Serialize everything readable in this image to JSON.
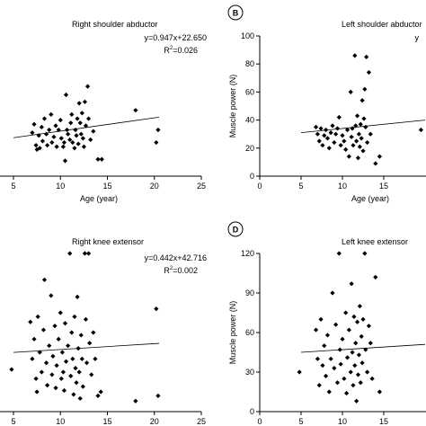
{
  "chart_data": [
    {
      "type": "scatter",
      "panel_letter": "",
      "title": "Right shoulder abductor",
      "equation": "y=0.947x+22.650",
      "r2_label": "R",
      "r2_sup": "2",
      "r2_value": "=0.026",
      "xlabel": "Age (year)",
      "ylabel": "",
      "xlim": [
        5,
        25
      ],
      "ylim": [
        0,
        100
      ],
      "xticks": [
        "5",
        "10",
        "15",
        "20",
        "25"
      ],
      "yticks": [],
      "trend": {
        "slope": 0.947,
        "intercept": 22.65,
        "x": [
          5,
          20.5
        ]
      },
      "points": [
        [
          7.0,
          31
        ],
        [
          7.2,
          37
        ],
        [
          7.4,
          22
        ],
        [
          7.5,
          19
        ],
        [
          7.7,
          29
        ],
        [
          7.8,
          20
        ],
        [
          8.0,
          35
        ],
        [
          8.1,
          25
        ],
        [
          8.3,
          41
        ],
        [
          8.5,
          30
        ],
        [
          8.6,
          22
        ],
        [
          8.8,
          33
        ],
        [
          9.0,
          44
        ],
        [
          9.1,
          24
        ],
        [
          9.3,
          28
        ],
        [
          9.5,
          36
        ],
        [
          9.6,
          21
        ],
        [
          9.8,
          33
        ],
        [
          10.0,
          40
        ],
        [
          10.1,
          27
        ],
        [
          10.3,
          21
        ],
        [
          10.4,
          24
        ],
        [
          10.5,
          11
        ],
        [
          10.6,
          58
        ],
        [
          10.7,
          33
        ],
        [
          10.8,
          30
        ],
        [
          11.0,
          26
        ],
        [
          11.1,
          38
        ],
        [
          11.2,
          44
        ],
        [
          11.3,
          24
        ],
        [
          11.5,
          20
        ],
        [
          11.6,
          33
        ],
        [
          11.7,
          29
        ],
        [
          11.8,
          41
        ],
        [
          11.9,
          23
        ],
        [
          12.0,
          52
        ],
        [
          12.1,
          38
        ],
        [
          12.2,
          30
        ],
        [
          12.3,
          45
        ],
        [
          12.4,
          27
        ],
        [
          12.5,
          21
        ],
        [
          12.6,
          53
        ],
        [
          12.7,
          36
        ],
        [
          12.9,
          64
        ],
        [
          13.0,
          41
        ],
        [
          13.2,
          26
        ],
        [
          13.5,
          32
        ],
        [
          14.0,
          12
        ],
        [
          14.4,
          12
        ],
        [
          18.0,
          47
        ],
        [
          20.2,
          24
        ],
        [
          20.4,
          33
        ]
      ]
    },
    {
      "type": "scatter",
      "panel_letter": "B",
      "title": "Left shoulder abductor",
      "equation": "y",
      "r2_label": "",
      "r2_sup": "",
      "r2_value": "",
      "xlabel": "Age (year)",
      "ylabel": "Muscle power (N)",
      "xlim": [
        0,
        20
      ],
      "ylim": [
        0,
        100
      ],
      "xticks": [
        "0",
        "5",
        "10",
        "15"
      ],
      "yticks": [
        "0",
        "20",
        "40",
        "60",
        "80",
        "100"
      ],
      "trend": {
        "slope": 0.6,
        "intercept": 28.0,
        "x": [
          5,
          20
        ]
      },
      "points": [
        [
          6.8,
          35
        ],
        [
          7.0,
          30
        ],
        [
          7.2,
          25
        ],
        [
          7.4,
          34
        ],
        [
          7.6,
          22
        ],
        [
          7.8,
          29
        ],
        [
          8.0,
          33
        ],
        [
          8.2,
          27
        ],
        [
          8.4,
          20
        ],
        [
          8.6,
          31
        ],
        [
          8.8,
          36
        ],
        [
          9.0,
          24
        ],
        [
          9.2,
          30
        ],
        [
          9.4,
          34
        ],
        [
          9.6,
          42
        ],
        [
          9.8,
          22
        ],
        [
          10.0,
          29
        ],
        [
          10.2,
          25
        ],
        [
          10.4,
          19
        ],
        [
          10.6,
          33
        ],
        [
          10.8,
          14
        ],
        [
          11.0,
          60
        ],
        [
          11.1,
          28
        ],
        [
          11.2,
          34
        ],
        [
          11.3,
          22
        ],
        [
          11.5,
          86
        ],
        [
          11.6,
          36
        ],
        [
          11.7,
          25
        ],
        [
          11.8,
          43
        ],
        [
          11.9,
          13
        ],
        [
          12.0,
          30
        ],
        [
          12.1,
          21
        ],
        [
          12.2,
          37
        ],
        [
          12.3,
          27
        ],
        [
          12.4,
          54
        ],
        [
          12.5,
          18
        ],
        [
          12.6,
          41
        ],
        [
          12.7,
          62
        ],
        [
          12.8,
          35
        ],
        [
          12.9,
          85
        ],
        [
          13.0,
          24
        ],
        [
          13.2,
          74
        ],
        [
          13.4,
          30
        ],
        [
          14.0,
          9
        ],
        [
          14.5,
          14
        ],
        [
          19.5,
          33
        ]
      ]
    },
    {
      "type": "scatter",
      "panel_letter": "",
      "title": "Right knee extensor",
      "equation": "y=0.442x+42.716",
      "r2_label": "R",
      "r2_sup": "2",
      "r2_value": "=0.002",
      "xlabel": "Age (year)",
      "ylabel": "",
      "xlim": [
        5,
        25
      ],
      "ylim": [
        0,
        120
      ],
      "xticks": [
        "5",
        "10",
        "15",
        "20",
        "25"
      ],
      "yticks": [],
      "trend": {
        "slope": 0.442,
        "intercept": 42.716,
        "x": [
          5,
          20.5
        ]
      },
      "points": [
        [
          4.8,
          32
        ],
        [
          6.8,
          68
        ],
        [
          7.0,
          40
        ],
        [
          7.2,
          55
        ],
        [
          7.4,
          25
        ],
        [
          7.5,
          15
        ],
        [
          7.6,
          72
        ],
        [
          7.8,
          45
        ],
        [
          8.0,
          30
        ],
        [
          8.2,
          62
        ],
        [
          8.3,
          100
        ],
        [
          8.5,
          37
        ],
        [
          8.6,
          20
        ],
        [
          8.8,
          50
        ],
        [
          9.0,
          88
        ],
        [
          9.1,
          28
        ],
        [
          9.2,
          42
        ],
        [
          9.4,
          65
        ],
        [
          9.5,
          18
        ],
        [
          9.6,
          35
        ],
        [
          9.8,
          55
        ],
        [
          10.0,
          75
        ],
        [
          10.1,
          25
        ],
        [
          10.2,
          45
        ],
        [
          10.3,
          30
        ],
        [
          10.4,
          16
        ],
        [
          10.5,
          67
        ],
        [
          10.6,
          38
        ],
        [
          10.8,
          50
        ],
        [
          11.0,
          120
        ],
        [
          11.1,
          27
        ],
        [
          11.2,
          60
        ],
        [
          11.3,
          40
        ],
        [
          11.4,
          13
        ],
        [
          11.5,
          72
        ],
        [
          11.6,
          33
        ],
        [
          11.7,
          22
        ],
        [
          11.8,
          87
        ],
        [
          11.9,
          48
        ],
        [
          12.0,
          30
        ],
        [
          12.1,
          10
        ],
        [
          12.2,
          58
        ],
        [
          12.3,
          40
        ],
        [
          12.4,
          19
        ],
        [
          12.6,
          120
        ],
        [
          12.7,
          70
        ],
        [
          12.8,
          37
        ],
        [
          13.0,
          120
        ],
        [
          13.1,
          52
        ],
        [
          13.3,
          28
        ],
        [
          13.5,
          60
        ],
        [
          13.7,
          40
        ],
        [
          14.0,
          12
        ],
        [
          14.3,
          15
        ],
        [
          18.0,
          8
        ],
        [
          20.2,
          78
        ],
        [
          20.4,
          12
        ]
      ]
    },
    {
      "type": "scatter",
      "panel_letter": "D",
      "title": "Left knee extensor",
      "equation": "",
      "r2_label": "",
      "r2_sup": "",
      "r2_value": "",
      "xlabel": "Age (year)",
      "ylabel": "Muscle power (N)",
      "xlim": [
        0,
        20
      ],
      "ylim": [
        0,
        120
      ],
      "xticks": [
        "0",
        "5",
        "10",
        "15"
      ],
      "yticks": [
        "0",
        "30",
        "60",
        "90",
        "120"
      ],
      "trend": {
        "slope": 0.4,
        "intercept": 43.0,
        "x": [
          5,
          20
        ]
      },
      "points": [
        [
          4.8,
          30
        ],
        [
          6.8,
          62
        ],
        [
          7.0,
          40
        ],
        [
          7.2,
          20
        ],
        [
          7.4,
          70
        ],
        [
          7.6,
          35
        ],
        [
          7.8,
          50
        ],
        [
          8.0,
          27
        ],
        [
          8.2,
          58
        ],
        [
          8.4,
          15
        ],
        [
          8.6,
          40
        ],
        [
          8.8,
          90
        ],
        [
          9.0,
          33
        ],
        [
          9.2,
          66
        ],
        [
          9.4,
          22
        ],
        [
          9.6,
          120
        ],
        [
          9.7,
          47
        ],
        [
          9.8,
          36
        ],
        [
          10.0,
          55
        ],
        [
          10.2,
          25
        ],
        [
          10.4,
          75
        ],
        [
          10.5,
          14
        ],
        [
          10.6,
          41
        ],
        [
          10.8,
          62
        ],
        [
          11.0,
          30
        ],
        [
          11.1,
          97
        ],
        [
          11.2,
          45
        ],
        [
          11.3,
          20
        ],
        [
          11.4,
          72
        ],
        [
          11.5,
          35
        ],
        [
          11.6,
          52
        ],
        [
          11.7,
          8
        ],
        [
          11.8,
          68
        ],
        [
          11.9,
          28
        ],
        [
          12.0,
          43
        ],
        [
          12.1,
          80
        ],
        [
          12.2,
          22
        ],
        [
          12.3,
          57
        ],
        [
          12.4,
          37
        ],
        [
          12.5,
          70
        ],
        [
          12.7,
          120
        ],
        [
          12.8,
          47
        ],
        [
          13.0,
          30
        ],
        [
          13.2,
          65
        ],
        [
          13.4,
          52
        ],
        [
          13.6,
          25
        ],
        [
          14.0,
          102
        ],
        [
          14.5,
          15
        ]
      ]
    }
  ]
}
